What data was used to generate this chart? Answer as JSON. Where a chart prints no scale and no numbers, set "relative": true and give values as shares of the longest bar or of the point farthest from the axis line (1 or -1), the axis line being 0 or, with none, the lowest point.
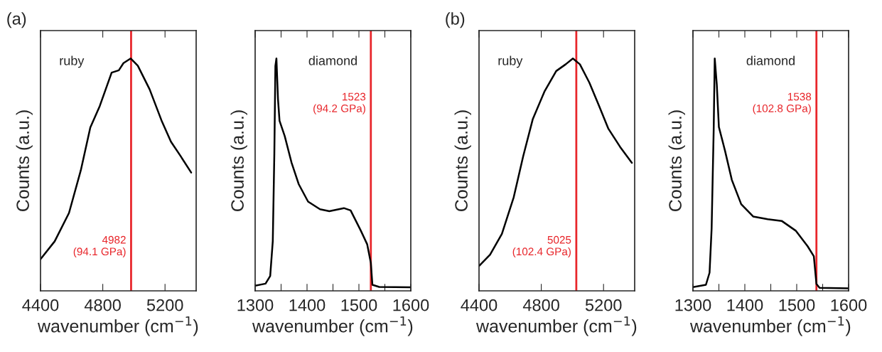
{
  "chart_data": [
    {
      "type": "line",
      "relative": true,
      "xlabel": "wavenumber (cm$^{−1}$)",
      "ylabel": "Counts (a.u.)",
      "xlim": [
        4400,
        5400
      ],
      "xticks": [
        4400,
        4800,
        5200
      ],
      "grid": false,
      "legend": false,
      "annotations": [
        "(a)",
        "ruby"
      ],
      "ref_lines": [
        {
          "axis": "x",
          "value": 4982,
          "label": "4982\n(94.1 GPa)",
          "color": "#e8262b"
        }
      ],
      "series": [
        {
          "color": "#000000",
          "x": [
            4400,
            4491,
            4583,
            4659,
            4720,
            4781,
            4857,
            4903,
            4933,
            4979,
            5025,
            5101,
            5177,
            5238,
            5299,
            5368
          ],
          "values": [
            0.136,
            0.213,
            0.335,
            0.519,
            0.703,
            0.796,
            0.939,
            0.949,
            0.98,
            1.0,
            0.969,
            0.867,
            0.734,
            0.642,
            0.581,
            0.509
          ]
        }
      ]
    },
    {
      "type": "line",
      "relative": true,
      "xlabel": "wavenumber (cm$^{−1}$)",
      "ylabel": "Counts (a.u.)",
      "xlim": [
        1300,
        1600
      ],
      "xticks": [
        1300,
        {
          "value": 1350,
          "label": null
        },
        1400,
        {
          "value": 1450,
          "label": null
        },
        1500,
        {
          "value": 1550,
          "label": null
        },
        1600
      ],
      "grid": false,
      "legend": false,
      "annotations": [
        "diamond"
      ],
      "ref_lines": [
        {
          "axis": "x",
          "value": 1523,
          "label": "1523\n(94.2 GPa)",
          "color": "#e8262b"
        }
      ],
      "series": [
        {
          "color": "#000000",
          "x": [
            1300,
            1320,
            1329,
            1334,
            1337,
            1339,
            1341,
            1344,
            1347,
            1357,
            1370,
            1384,
            1402,
            1425,
            1443,
            1471,
            1484,
            1503,
            1516,
            1523,
            1526,
            1539,
            1600
          ],
          "values": [
            0.022,
            0.031,
            0.064,
            0.214,
            0.591,
            0.967,
            1.0,
            0.826,
            0.732,
            0.666,
            0.553,
            0.459,
            0.384,
            0.351,
            0.343,
            0.356,
            0.346,
            0.262,
            0.2,
            0.12,
            0.026,
            0.017,
            0.015
          ]
        }
      ]
    },
    {
      "type": "line",
      "relative": true,
      "xlabel": "wavenumber (cm$^{−1}$)",
      "ylabel": "Counts (a.u.)",
      "xlim": [
        4400,
        5400
      ],
      "xticks": [
        4400,
        4800,
        5200
      ],
      "grid": false,
      "legend": false,
      "annotations": [
        "(b)",
        "ruby"
      ],
      "ref_lines": [
        {
          "axis": "x",
          "value": 5025,
          "label": "5025\n(102.4 GPa)",
          "color": "#e8262b"
        }
      ],
      "series": [
        {
          "color": "#000000",
          "x": [
            4400,
            4471,
            4547,
            4623,
            4684,
            4745,
            4820,
            4896,
            4957,
            5003,
            5048,
            5109,
            5170,
            5230,
            5306,
            5382
          ],
          "values": [
            0.107,
            0.156,
            0.245,
            0.403,
            0.58,
            0.738,
            0.857,
            0.946,
            0.975,
            1.0,
            0.975,
            0.896,
            0.798,
            0.699,
            0.62,
            0.551
          ]
        }
      ]
    },
    {
      "type": "line",
      "relative": true,
      "xlabel": "wavenumber (cm$^{−1}$)",
      "ylabel": "Counts (a.u.)",
      "xlim": [
        1300,
        1600
      ],
      "xticks": [
        1300,
        {
          "value": 1350,
          "label": null
        },
        1400,
        {
          "value": 1450,
          "label": null
        },
        1500,
        {
          "value": 1550,
          "label": null
        },
        1600
      ],
      "grid": false,
      "legend": false,
      "annotations": [
        "diamond"
      ],
      "ref_lines": [
        {
          "axis": "x",
          "value": 1538,
          "label": "1538\n(102.8 GPa)",
          "color": "#e8262b"
        }
      ],
      "series": [
        {
          "color": "#000000",
          "x": [
            1300,
            1325,
            1332,
            1336,
            1340,
            1342,
            1346,
            1350,
            1362,
            1375,
            1393,
            1416,
            1444,
            1471,
            1498,
            1521,
            1533,
            1538,
            1544,
            1600
          ],
          "values": [
            0.016,
            0.026,
            0.078,
            0.268,
            0.696,
            1.0,
            0.886,
            0.705,
            0.601,
            0.477,
            0.373,
            0.32,
            0.308,
            0.301,
            0.259,
            0.192,
            0.149,
            0.03,
            0.013,
            0.011
          ]
        }
      ]
    }
  ]
}
